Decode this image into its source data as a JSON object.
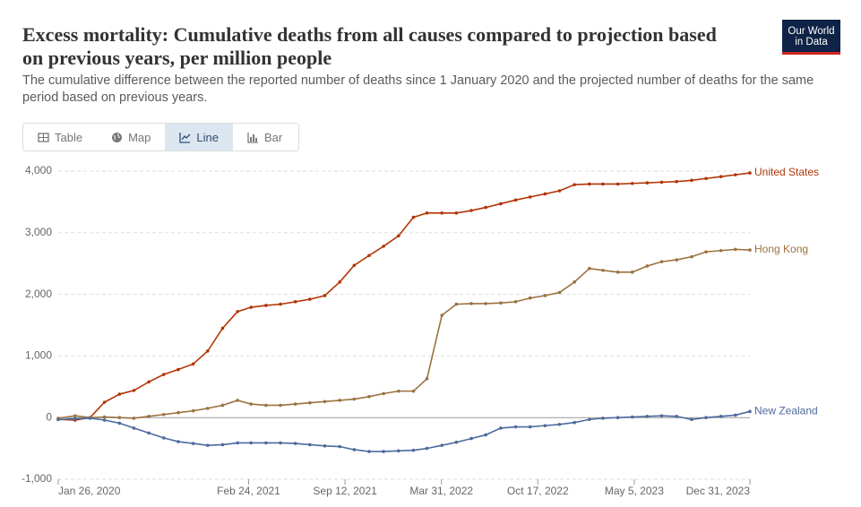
{
  "logo": [
    "Our World",
    "in Data"
  ],
  "tabs": [
    "Table",
    "Map",
    "Line",
    "Bar"
  ],
  "active_tab": "Line",
  "chart_data": {
    "type": "line",
    "title": "Excess mortality: Cumulative deaths from all causes compared to projection based on previous years, per million people",
    "subtitle": "The cumulative difference between the reported number of deaths since 1 January 2020 and the projected number of deaths for the same period based on previous years.",
    "x": [
      "2020-01-26",
      "2020-03-01",
      "2020-04-01",
      "2020-05-01",
      "2020-06-01",
      "2020-07-01",
      "2020-08-01",
      "2020-09-01",
      "2020-10-01",
      "2020-11-01",
      "2020-12-01",
      "2021-01-01",
      "2021-02-01",
      "2021-03-01",
      "2021-04-01",
      "2021-05-01",
      "2021-06-01",
      "2021-07-01",
      "2021-08-01",
      "2021-09-01",
      "2021-10-01",
      "2021-11-01",
      "2021-12-01",
      "2022-01-01",
      "2022-02-01",
      "2022-03-01",
      "2022-04-01",
      "2022-05-01",
      "2022-06-01",
      "2022-07-01",
      "2022-08-01",
      "2022-09-01",
      "2022-10-01",
      "2022-11-01",
      "2022-12-01",
      "2023-01-01",
      "2023-02-01",
      "2023-03-01",
      "2023-04-01",
      "2023-05-01",
      "2023-06-01",
      "2023-07-01",
      "2023-08-01",
      "2023-09-01",
      "2023-10-01",
      "2023-11-01",
      "2023-12-01",
      "2023-12-31"
    ],
    "series": [
      {
        "name": "United States",
        "color": "#b13507",
        "values": [
          -30,
          -40,
          0,
          250,
          380,
          440,
          580,
          700,
          780,
          870,
          1080,
          1450,
          1720,
          1790,
          1820,
          1840,
          1880,
          1920,
          1980,
          2200,
          2470,
          2630,
          2780,
          2950,
          3250,
          3320,
          3320,
          3320,
          3360,
          3410,
          3470,
          3530,
          3580,
          3630,
          3680,
          3780,
          3790,
          3790,
          3790,
          3800,
          3810,
          3820,
          3830,
          3850,
          3880,
          3910,
          3940,
          3970
        ]
      },
      {
        "name": "Hong Kong",
        "color": "#9a7240",
        "values": [
          -10,
          30,
          0,
          10,
          0,
          -10,
          20,
          50,
          80,
          110,
          150,
          200,
          280,
          220,
          200,
          200,
          220,
          240,
          260,
          280,
          300,
          340,
          390,
          430,
          430,
          630,
          1660,
          1840,
          1850,
          1850,
          1860,
          1880,
          1940,
          1980,
          2030,
          2200,
          2420,
          2390,
          2360,
          2360,
          2460,
          2530,
          2560,
          2610,
          2690,
          2710,
          2730,
          2720
        ]
      },
      {
        "name": "New Zealand",
        "color": "#4c6a9c",
        "values": [
          -30,
          -20,
          -10,
          -40,
          -90,
          -170,
          -250,
          -330,
          -390,
          -420,
          -450,
          -440,
          -410,
          -410,
          -410,
          -410,
          -420,
          -440,
          -460,
          -470,
          -520,
          -550,
          -550,
          -540,
          -530,
          -500,
          -450,
          -400,
          -340,
          -280,
          -170,
          -150,
          -150,
          -130,
          -110,
          -80,
          -30,
          -10,
          0,
          10,
          20,
          30,
          20,
          -30,
          0,
          20,
          40,
          100
        ]
      }
    ],
    "xlim": [
      "2020-01-26",
      "2023-12-31"
    ],
    "xticks": [
      {
        "value": "2020-01-26",
        "label": "Jan 26, 2020"
      },
      {
        "value": "2021-02-24",
        "label": "Feb 24, 2021"
      },
      {
        "value": "2021-09-12",
        "label": "Sep 12, 2021"
      },
      {
        "value": "2022-03-31",
        "label": "Mar 31, 2022"
      },
      {
        "value": "2022-10-17",
        "label": "Oct 17, 2022"
      },
      {
        "value": "2023-05-05",
        "label": "May 5, 2023"
      },
      {
        "value": "2023-12-31",
        "label": "Dec 31, 2023"
      }
    ],
    "ylim": [
      -1000,
      4000
    ],
    "yticks": [
      {
        "value": -1000,
        "label": "-1,000"
      },
      0,
      {
        "value": 1000,
        "label": "1,000"
      },
      {
        "value": 2000,
        "label": "2,000"
      },
      {
        "value": 3000,
        "label": "3,000"
      },
      {
        "value": 4000,
        "label": "4,000"
      }
    ],
    "grid": true
  }
}
